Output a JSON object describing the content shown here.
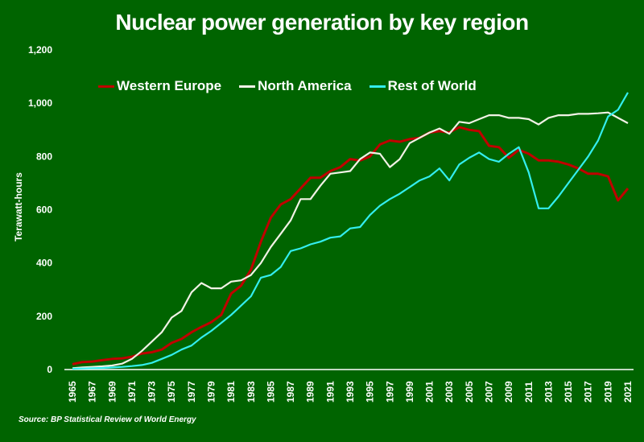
{
  "chart_data": {
    "type": "line",
    "title": "Nuclear power generation by key region",
    "xlabel": "",
    "ylabel": "Terawatt-hours",
    "ylim": [
      0,
      1200
    ],
    "yticks": [
      "0",
      "200",
      "400",
      "600",
      "800",
      "1,000",
      "1,200"
    ],
    "ytick_values": [
      0,
      200,
      400,
      600,
      800,
      1000,
      1200
    ],
    "xtick_labels": [
      "1965",
      "1967",
      "1969",
      "1971",
      "1973",
      "1975",
      "1977",
      "1979",
      "1981",
      "1983",
      "1985",
      "1987",
      "1989",
      "1991",
      "1993",
      "1995",
      "1997",
      "1999",
      "2001",
      "2003",
      "2005",
      "2007",
      "2009",
      "2011",
      "2013",
      "2015",
      "2017",
      "2019",
      "2021"
    ],
    "x": [
      1965,
      1966,
      1967,
      1968,
      1969,
      1970,
      1971,
      1972,
      1973,
      1974,
      1975,
      1976,
      1977,
      1978,
      1979,
      1980,
      1981,
      1982,
      1983,
      1984,
      1985,
      1986,
      1987,
      1988,
      1989,
      1990,
      1991,
      1992,
      1993,
      1994,
      1995,
      1996,
      1997,
      1998,
      1999,
      2000,
      2001,
      2002,
      2003,
      2004,
      2005,
      2006,
      2007,
      2008,
      2009,
      2010,
      2011,
      2012,
      2013,
      2014,
      2015,
      2016,
      2017,
      2018,
      2019,
      2020,
      2021
    ],
    "grid": false,
    "legend": "top",
    "series": [
      {
        "name": "Western Europe",
        "color": "#c00000",
        "values": [
          20,
          28,
          30,
          35,
          40,
          42,
          48,
          60,
          65,
          75,
          100,
          115,
          140,
          160,
          178,
          205,
          285,
          315,
          375,
          480,
          570,
          620,
          640,
          680,
          720,
          720,
          745,
          760,
          790,
          785,
          800,
          845,
          860,
          855,
          865,
          870,
          890,
          895,
          890,
          910,
          900,
          895,
          840,
          835,
          795,
          825,
          810,
          785,
          785,
          780,
          770,
          755,
          735,
          735,
          725,
          635,
          680
        ]
      },
      {
        "name": "North America",
        "color": "#f2f2e6",
        "values": [
          5,
          8,
          10,
          12,
          15,
          22,
          40,
          70,
          105,
          140,
          195,
          220,
          290,
          325,
          305,
          305,
          330,
          335,
          355,
          400,
          460,
          510,
          560,
          640,
          640,
          690,
          735,
          740,
          745,
          790,
          815,
          810,
          760,
          790,
          850,
          870,
          890,
          905,
          885,
          930,
          925,
          940,
          955,
          955,
          945,
          945,
          940,
          920,
          945,
          955,
          955,
          960,
          960,
          962,
          965,
          945,
          925
        ]
      },
      {
        "name": "Rest of World",
        "color": "#33eeee",
        "values": [
          3,
          4,
          5,
          6,
          8,
          10,
          13,
          17,
          25,
          40,
          55,
          75,
          90,
          120,
          145,
          175,
          205,
          240,
          275,
          345,
          355,
          385,
          445,
          455,
          470,
          480,
          495,
          500,
          530,
          535,
          580,
          615,
          640,
          660,
          685,
          710,
          725,
          755,
          710,
          770,
          795,
          815,
          790,
          780,
          810,
          835,
          740,
          605,
          605,
          650,
          700,
          750,
          800,
          860,
          950,
          975,
          1040
        ]
      }
    ]
  },
  "source": "Source: BP Statistical Review of World Energy"
}
